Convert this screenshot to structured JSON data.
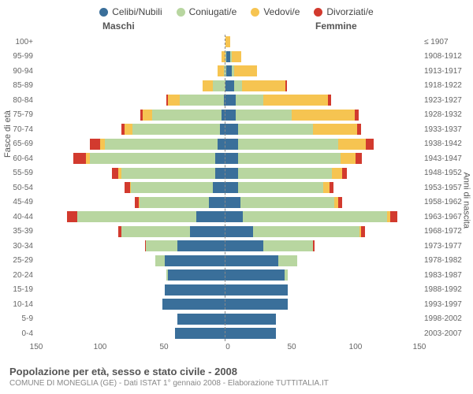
{
  "legend": [
    {
      "label": "Celibi/Nubili",
      "color": "#3a6f9a"
    },
    {
      "label": "Coniugati/e",
      "color": "#b8d6a0"
    },
    {
      "label": "Vedovi/e",
      "color": "#f6c451"
    },
    {
      "label": "Divorziati/e",
      "color": "#d23a2e"
    }
  ],
  "headers": {
    "male": "Maschi",
    "female": "Femmine"
  },
  "axis_titles": {
    "left": "Fasce di età",
    "right": "Anni di nascita"
  },
  "title": "Popolazione per età, sesso e stato civile - 2008",
  "subtitle": "COMUNE DI MONEGLIA (GE) - Dati ISTAT 1° gennaio 2008 - Elaborazione TUTTITALIA.IT",
  "xmax": 150,
  "xticks": [
    150,
    100,
    50,
    0,
    50,
    100,
    150
  ],
  "chart_inner_width": 478,
  "colors": {
    "single": "#3a6f9a",
    "married": "#b8d6a0",
    "widowed": "#f6c451",
    "divorced": "#d23a2e"
  },
  "rows": [
    {
      "age": "100+",
      "birth": "≤ 1907",
      "m": {
        "s": 0,
        "m": 0,
        "w": 2,
        "d": 0
      },
      "f": {
        "s": 0,
        "m": 0,
        "w": 2,
        "d": 0
      }
    },
    {
      "age": "95-99",
      "birth": "1908-1912",
      "m": {
        "s": 1,
        "m": 1,
        "w": 3,
        "d": 0
      },
      "f": {
        "s": 2,
        "m": 1,
        "w": 8,
        "d": 0
      }
    },
    {
      "age": "90-94",
      "birth": "1913-1917",
      "m": {
        "s": 1,
        "m": 2,
        "w": 5,
        "d": 0
      },
      "f": {
        "s": 3,
        "m": 2,
        "w": 18,
        "d": 0
      }
    },
    {
      "age": "85-89",
      "birth": "1918-1922",
      "m": {
        "s": 2,
        "m": 10,
        "w": 8,
        "d": 0
      },
      "f": {
        "s": 5,
        "m": 6,
        "w": 35,
        "d": 1
      }
    },
    {
      "age": "80-84",
      "birth": "1923-1927",
      "m": {
        "s": 3,
        "m": 35,
        "w": 10,
        "d": 1
      },
      "f": {
        "s": 6,
        "m": 22,
        "w": 52,
        "d": 2
      }
    },
    {
      "age": "75-79",
      "birth": "1928-1932",
      "m": {
        "s": 5,
        "m": 55,
        "w": 8,
        "d": 2
      },
      "f": {
        "s": 6,
        "m": 45,
        "w": 50,
        "d": 3
      }
    },
    {
      "age": "70-74",
      "birth": "1933-1937",
      "m": {
        "s": 6,
        "m": 70,
        "w": 6,
        "d": 3
      },
      "f": {
        "s": 8,
        "m": 60,
        "w": 35,
        "d": 3
      }
    },
    {
      "age": "65-69",
      "birth": "1938-1942",
      "m": {
        "s": 8,
        "m": 90,
        "w": 4,
        "d": 8
      },
      "f": {
        "s": 8,
        "m": 80,
        "w": 22,
        "d": 6
      }
    },
    {
      "age": "60-64",
      "birth": "1943-1947",
      "m": {
        "s": 10,
        "m": 100,
        "w": 3,
        "d": 10
      },
      "f": {
        "s": 8,
        "m": 82,
        "w": 12,
        "d": 5
      }
    },
    {
      "age": "55-59",
      "birth": "1948-1952",
      "m": {
        "s": 10,
        "m": 75,
        "w": 2,
        "d": 5
      },
      "f": {
        "s": 8,
        "m": 75,
        "w": 8,
        "d": 4
      }
    },
    {
      "age": "50-54",
      "birth": "1953-1957",
      "m": {
        "s": 12,
        "m": 65,
        "w": 1,
        "d": 4
      },
      "f": {
        "s": 8,
        "m": 68,
        "w": 5,
        "d": 3
      }
    },
    {
      "age": "45-49",
      "birth": "1958-1962",
      "m": {
        "s": 15,
        "m": 55,
        "w": 1,
        "d": 3
      },
      "f": {
        "s": 10,
        "m": 75,
        "w": 3,
        "d": 3
      }
    },
    {
      "age": "40-44",
      "birth": "1963-1967",
      "m": {
        "s": 25,
        "m": 95,
        "w": 0,
        "d": 8
      },
      "f": {
        "s": 12,
        "m": 115,
        "w": 2,
        "d": 6
      }
    },
    {
      "age": "35-39",
      "birth": "1968-1972",
      "m": {
        "s": 30,
        "m": 55,
        "w": 0,
        "d": 2
      },
      "f": {
        "s": 20,
        "m": 85,
        "w": 1,
        "d": 3
      }
    },
    {
      "age": "30-34",
      "birth": "1973-1977",
      "m": {
        "s": 40,
        "m": 25,
        "w": 0,
        "d": 1
      },
      "f": {
        "s": 28,
        "m": 40,
        "w": 0,
        "d": 1
      }
    },
    {
      "age": "25-29",
      "birth": "1978-1982",
      "m": {
        "s": 50,
        "m": 8,
        "w": 0,
        "d": 0
      },
      "f": {
        "s": 40,
        "m": 15,
        "w": 0,
        "d": 0
      }
    },
    {
      "age": "20-24",
      "birth": "1983-1987",
      "m": {
        "s": 48,
        "m": 1,
        "w": 0,
        "d": 0
      },
      "f": {
        "s": 45,
        "m": 3,
        "w": 0,
        "d": 0
      }
    },
    {
      "age": "15-19",
      "birth": "1988-1992",
      "m": {
        "s": 50,
        "m": 0,
        "w": 0,
        "d": 0
      },
      "f": {
        "s": 48,
        "m": 0,
        "w": 0,
        "d": 0
      }
    },
    {
      "age": "10-14",
      "birth": "1993-1997",
      "m": {
        "s": 52,
        "m": 0,
        "w": 0,
        "d": 0
      },
      "f": {
        "s": 48,
        "m": 0,
        "w": 0,
        "d": 0
      }
    },
    {
      "age": "5-9",
      "birth": "1998-2002",
      "m": {
        "s": 40,
        "m": 0,
        "w": 0,
        "d": 0
      },
      "f": {
        "s": 38,
        "m": 0,
        "w": 0,
        "d": 0
      }
    },
    {
      "age": "0-4",
      "birth": "2003-2007",
      "m": {
        "s": 42,
        "m": 0,
        "w": 0,
        "d": 0
      },
      "f": {
        "s": 38,
        "m": 0,
        "w": 0,
        "d": 0
      }
    }
  ]
}
